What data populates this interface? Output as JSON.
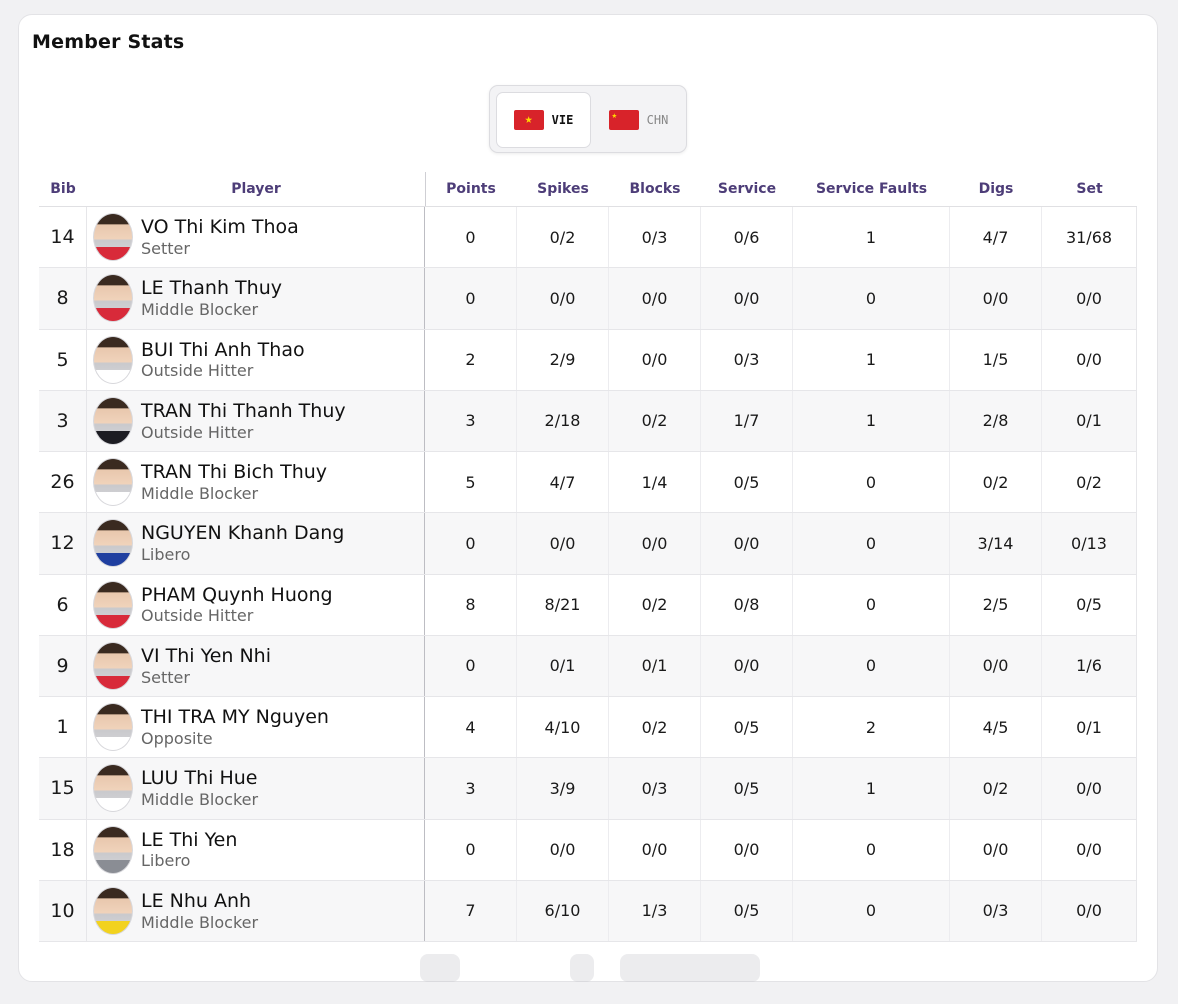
{
  "title": "Member Stats",
  "teams": [
    {
      "code": "VIE",
      "flag": "vietnam-flag-icon",
      "active": true
    },
    {
      "code": "CHN",
      "flag": "china-flag-icon",
      "active": false
    }
  ],
  "columns": {
    "bib": "Bib",
    "player": "Player",
    "points": "Points",
    "spikes": "Spikes",
    "blocks": "Blocks",
    "service": "Service",
    "service_faults": "Service Faults",
    "digs": "Digs",
    "set": "Set"
  },
  "players": [
    {
      "bib": "14",
      "name": "VO Thi Kim Thoa",
      "position": "Setter",
      "points": "0",
      "spikes": "0/2",
      "blocks": "0/3",
      "service": "0/6",
      "service_faults": "1",
      "digs": "4/7",
      "set": "31/68"
    },
    {
      "bib": "8",
      "name": "LE Thanh Thuy",
      "position": "Middle Blocker",
      "points": "0",
      "spikes": "0/0",
      "blocks": "0/0",
      "service": "0/0",
      "service_faults": "0",
      "digs": "0/0",
      "set": "0/0"
    },
    {
      "bib": "5",
      "name": "BUI Thi Anh Thao",
      "position": "Outside Hitter",
      "points": "2",
      "spikes": "2/9",
      "blocks": "0/0",
      "service": "0/3",
      "service_faults": "1",
      "digs": "1/5",
      "set": "0/0"
    },
    {
      "bib": "3",
      "name": "TRAN Thi Thanh Thuy",
      "position": "Outside Hitter",
      "points": "3",
      "spikes": "2/18",
      "blocks": "0/2",
      "service": "1/7",
      "service_faults": "1",
      "digs": "2/8",
      "set": "0/1"
    },
    {
      "bib": "26",
      "name": "TRAN Thi Bich Thuy",
      "position": "Middle Blocker",
      "points": "5",
      "spikes": "4/7",
      "blocks": "1/4",
      "service": "0/5",
      "service_faults": "0",
      "digs": "0/2",
      "set": "0/2"
    },
    {
      "bib": "12",
      "name": "NGUYEN Khanh Dang",
      "position": "Libero",
      "points": "0",
      "spikes": "0/0",
      "blocks": "0/0",
      "service": "0/0",
      "service_faults": "0",
      "digs": "3/14",
      "set": "0/13"
    },
    {
      "bib": "6",
      "name": "PHAM Quynh Huong",
      "position": "Outside Hitter",
      "points": "8",
      "spikes": "8/21",
      "blocks": "0/2",
      "service": "0/8",
      "service_faults": "0",
      "digs": "2/5",
      "set": "0/5"
    },
    {
      "bib": "9",
      "name": "VI Thi Yen Nhi",
      "position": "Setter",
      "points": "0",
      "spikes": "0/1",
      "blocks": "0/1",
      "service": "0/0",
      "service_faults": "0",
      "digs": "0/0",
      "set": "1/6"
    },
    {
      "bib": "1",
      "name": "THI TRA MY Nguyen",
      "position": "Opposite",
      "points": "4",
      "spikes": "4/10",
      "blocks": "0/2",
      "service": "0/5",
      "service_faults": "2",
      "digs": "4/5",
      "set": "0/1"
    },
    {
      "bib": "15",
      "name": "LUU Thi Hue",
      "position": "Middle Blocker",
      "points": "3",
      "spikes": "3/9",
      "blocks": "0/3",
      "service": "0/5",
      "service_faults": "1",
      "digs": "0/2",
      "set": "0/0"
    },
    {
      "bib": "18",
      "name": "LE Thi Yen",
      "position": "Libero",
      "points": "0",
      "spikes": "0/0",
      "blocks": "0/0",
      "service": "0/0",
      "service_faults": "0",
      "digs": "0/0",
      "set": "0/0"
    },
    {
      "bib": "10",
      "name": "LE Nhu Anh",
      "position": "Middle Blocker",
      "points": "7",
      "spikes": "6/10",
      "blocks": "1/3",
      "service": "0/5",
      "service_faults": "0",
      "digs": "0/3",
      "set": "0/0"
    }
  ],
  "avatar_shirt_colors": [
    "#d82a3a",
    "#d82a3a",
    "#ffffff",
    "#1c1c22",
    "#ffffff",
    "#1f3fa0",
    "#d82a3a",
    "#d82a3a",
    "#ffffff",
    "#ffffff",
    "#8a8d94",
    "#f2d21e"
  ]
}
